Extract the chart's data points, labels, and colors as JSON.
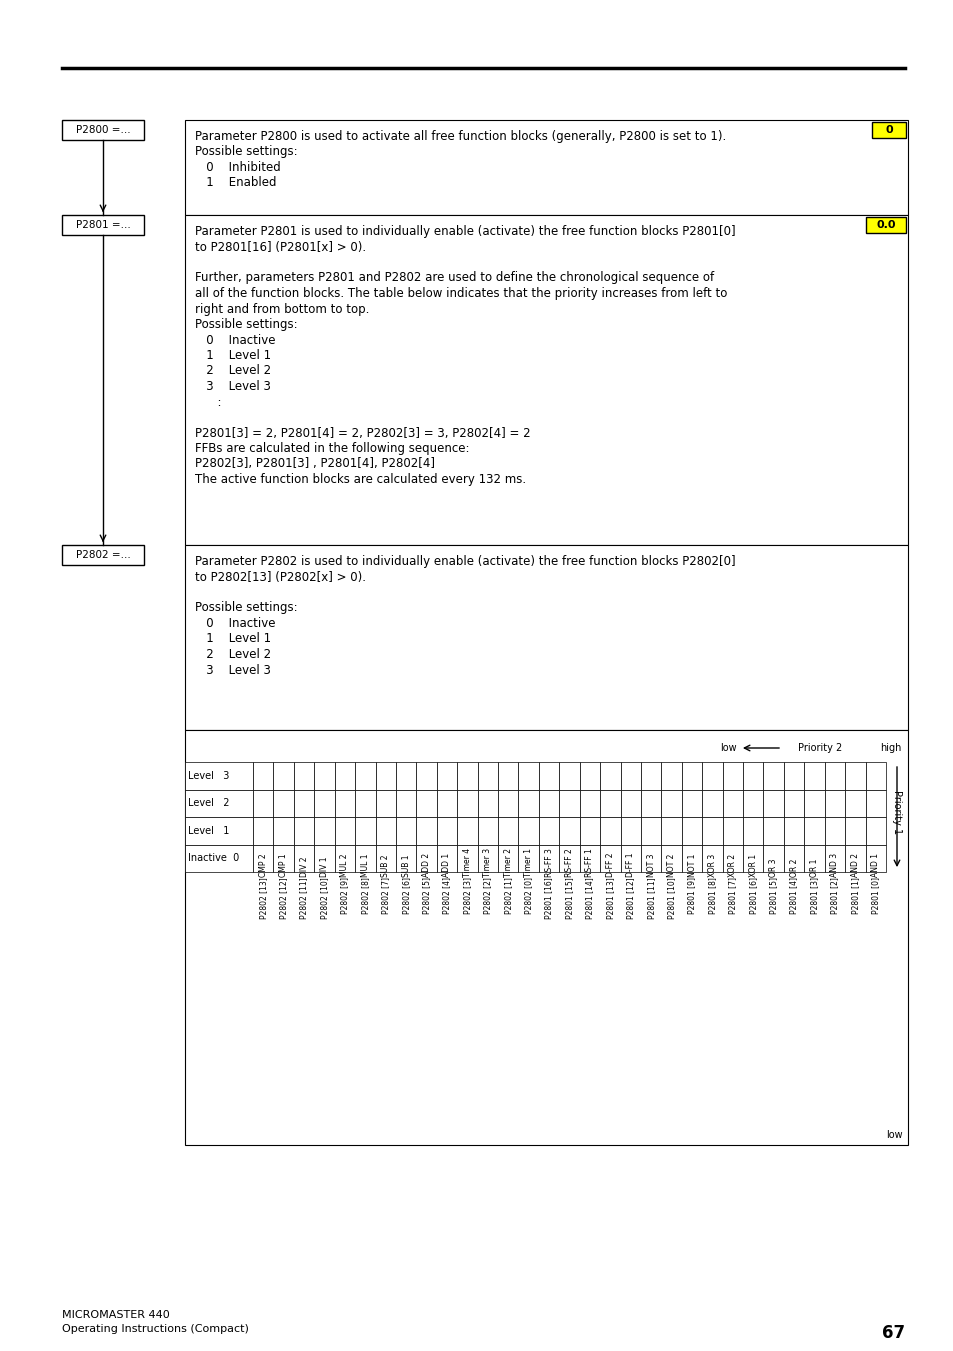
{
  "page_num": "67",
  "footer_left1": "MICROMASTER 440",
  "footer_left2": "Operating Instructions (Compact)",
  "p2800_label": "P2800 =...",
  "p2800_badge": "0",
  "p2800_text": [
    "Parameter P2800 is used to activate all free function blocks (generally, P2800 is set to 1).",
    "Possible settings:",
    "   0    Inhibited",
    "   1    Enabled"
  ],
  "p2801_label": "P2801 =...",
  "p2801_badge": "0.0",
  "p2801_text": [
    "Parameter P2801 is used to individually enable (activate) the free function blocks P2801[0]",
    "to P2801[16] (P2801[x] > 0).",
    "",
    "Further, parameters P2801 and P2802 are used to define the chronological sequence of",
    "all of the function blocks. The table below indicates that the priority increases from left to",
    "right and from bottom to top.",
    "Possible settings:",
    "   0    Inactive",
    "   1    Level 1",
    "   2    Level 2",
    "   3    Level 3",
    "      :",
    "",
    "P2801[3] = 2, P2801[4] = 2, P2802[3] = 3, P2802[4] = 2",
    "FFBs are calculated in the following sequence:",
    "P2802[3], P2801[3] , P2801[4], P2802[4]",
    "The active function blocks are calculated every 132 ms."
  ],
  "p2802_label": "P2802 =...",
  "p2802_text": [
    "Parameter P2802 is used to individually enable (activate) the free function blocks P2802[0]",
    "to P2802[13] (P2802[x] > 0).",
    "",
    "Possible settings:",
    "   0    Inactive",
    "   1    Level 1",
    "   2    Level 2",
    "   3    Level 3"
  ],
  "grid_row_labels": [
    "Level   3",
    "Level   2",
    "Level   1",
    "Inactive  0"
  ],
  "grid_col_labels": [
    "P2802 [13]",
    "P2802 [12]",
    "P2802 [11]",
    "P2802 [10]",
    "P2802 [9]",
    "P2802 [8]",
    "P2802 [7]",
    "P2802 [6]",
    "P2802 [5]",
    "P2802 [4]",
    "P2802 [3]",
    "P2802 [2]",
    "P2802 [1]",
    "P2802 [0]",
    "P2801 [16]",
    "P2801 [15]",
    "P2801 [14]",
    "P2801 [13]",
    "P2801 [12]",
    "P2801 [11]",
    "P2801 [10]",
    "P2801 [9]",
    "P2801 [8]",
    "P2801 [7]",
    "P2801 [6]",
    "P2801 [5]",
    "P2801 [4]",
    "P2801 [3]",
    "P2801 [2]",
    "P2801 [1]",
    "P2801 [0]"
  ],
  "grid_col_sublabels": [
    "CMP 2",
    "CMP 1",
    "DIV 2",
    "DIV 1",
    "MUL 2",
    "MUL 1",
    "SUB 2",
    "SUB 1",
    "ADD 2",
    "ADD 1",
    "Timer 4",
    "Timer 3",
    "Timer 2",
    "Timer 1",
    "RS-FF 3",
    "RS-FF 2",
    "RS-FF 1",
    "D-FF 2",
    "D-FF 1",
    "NOT 3",
    "NOT 2",
    "NOT 1",
    "XOR 3",
    "XOR 2",
    "XOR 1",
    "OR 3",
    "OR 2",
    "OR 1",
    "AND 3",
    "AND 2",
    "AND 1"
  ],
  "priority2_label": "Priority 2",
  "priority1_label": "Priority 1",
  "low_label": "low",
  "high_label": "high",
  "low_bottom": "low",
  "badge_color": "#ffff00",
  "bg_color": "#ffffff",
  "text_color": "#000000"
}
